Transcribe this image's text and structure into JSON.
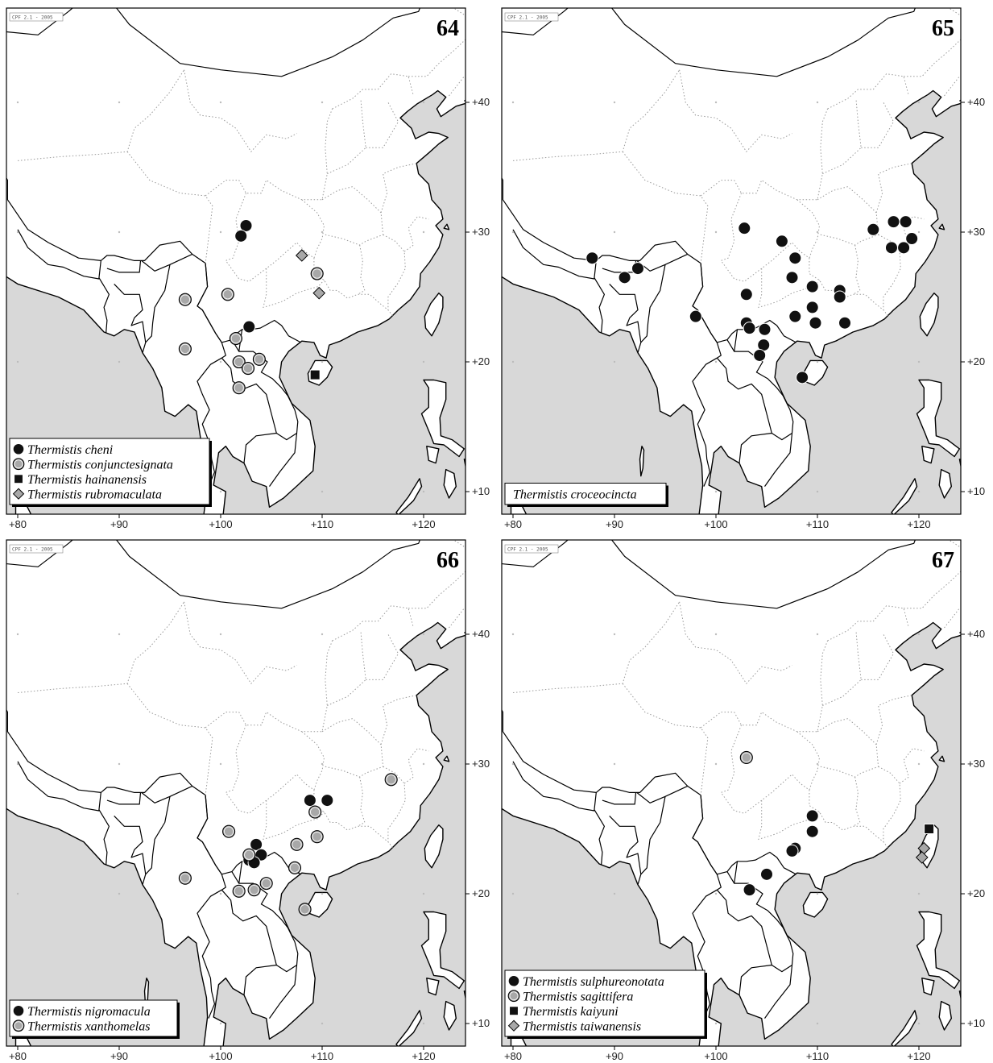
{
  "maps": [
    {
      "number": "64",
      "stamp": "CPF 2.1 - 2005",
      "legend": [
        {
          "symbol": "black-circle",
          "label": "Thermistis cheni"
        },
        {
          "symbol": "gray-circle",
          "label": "Thermistis conjunctesignata"
        },
        {
          "symbol": "black-square",
          "label": "Thermistis hainanensis"
        },
        {
          "symbol": "gray-diamond",
          "label": "Thermistis rubromaculata"
        }
      ],
      "points": [
        {
          "symbol": "black-circle",
          "lon": 102.5,
          "lat": 30.5
        },
        {
          "symbol": "black-circle",
          "lon": 102.0,
          "lat": 29.7
        },
        {
          "symbol": "black-circle",
          "lon": 102.8,
          "lat": 22.7
        },
        {
          "symbol": "gray-circle",
          "lon": 96.5,
          "lat": 24.8
        },
        {
          "symbol": "gray-circle",
          "lon": 96.5,
          "lat": 21.0
        },
        {
          "symbol": "gray-circle",
          "lon": 100.7,
          "lat": 25.2
        },
        {
          "symbol": "gray-circle",
          "lon": 101.5,
          "lat": 21.8
        },
        {
          "symbol": "gray-circle",
          "lon": 101.8,
          "lat": 20.0
        },
        {
          "symbol": "gray-circle",
          "lon": 102.7,
          "lat": 19.5
        },
        {
          "symbol": "gray-circle",
          "lon": 103.8,
          "lat": 20.2
        },
        {
          "symbol": "gray-circle",
          "lon": 101.8,
          "lat": 18.0
        },
        {
          "symbol": "gray-circle",
          "lon": 109.5,
          "lat": 26.8
        },
        {
          "symbol": "black-square",
          "lon": 109.3,
          "lat": 19.0
        },
        {
          "symbol": "gray-diamond",
          "lon": 108.0,
          "lat": 28.2
        },
        {
          "symbol": "gray-diamond",
          "lon": 109.7,
          "lat": 25.3
        }
      ]
    },
    {
      "number": "65",
      "stamp": "CPF 2.1 - 2005",
      "legend": [
        {
          "symbol": "none",
          "label": "Thermistis croceocincta"
        }
      ],
      "points": [
        {
          "symbol": "black-circle",
          "lon": 87.8,
          "lat": 28.0
        },
        {
          "symbol": "black-circle",
          "lon": 91.0,
          "lat": 26.5
        },
        {
          "symbol": "black-circle",
          "lon": 92.3,
          "lat": 27.2
        },
        {
          "symbol": "black-circle",
          "lon": 98.0,
          "lat": 23.5
        },
        {
          "symbol": "black-circle",
          "lon": 102.8,
          "lat": 30.3
        },
        {
          "symbol": "black-circle",
          "lon": 106.5,
          "lat": 29.3
        },
        {
          "symbol": "black-circle",
          "lon": 107.8,
          "lat": 28.0
        },
        {
          "symbol": "black-circle",
          "lon": 103.0,
          "lat": 25.2
        },
        {
          "symbol": "black-circle",
          "lon": 107.5,
          "lat": 26.5
        },
        {
          "symbol": "black-circle",
          "lon": 109.5,
          "lat": 25.8
        },
        {
          "symbol": "black-circle",
          "lon": 109.5,
          "lat": 24.2
        },
        {
          "symbol": "black-circle",
          "lon": 107.8,
          "lat": 23.5
        },
        {
          "symbol": "black-circle",
          "lon": 109.8,
          "lat": 23.0
        },
        {
          "symbol": "black-circle",
          "lon": 112.2,
          "lat": 25.5
        },
        {
          "symbol": "black-circle",
          "lon": 112.2,
          "lat": 25.0
        },
        {
          "symbol": "black-circle",
          "lon": 112.7,
          "lat": 23.0
        },
        {
          "symbol": "black-circle",
          "lon": 103.0,
          "lat": 23.0
        },
        {
          "symbol": "black-circle",
          "lon": 103.3,
          "lat": 22.6
        },
        {
          "symbol": "black-circle",
          "lon": 104.8,
          "lat": 22.5
        },
        {
          "symbol": "black-circle",
          "lon": 104.7,
          "lat": 21.3
        },
        {
          "symbol": "black-circle",
          "lon": 104.3,
          "lat": 20.5
        },
        {
          "symbol": "black-circle",
          "lon": 108.5,
          "lat": 18.8
        },
        {
          "symbol": "black-circle",
          "lon": 115.5,
          "lat": 30.2
        },
        {
          "symbol": "black-circle",
          "lon": 117.5,
          "lat": 30.8
        },
        {
          "symbol": "black-circle",
          "lon": 118.7,
          "lat": 30.8
        },
        {
          "symbol": "black-circle",
          "lon": 117.3,
          "lat": 28.8
        },
        {
          "symbol": "black-circle",
          "lon": 118.5,
          "lat": 28.8
        },
        {
          "symbol": "black-circle",
          "lon": 119.3,
          "lat": 29.5
        }
      ]
    },
    {
      "number": "66",
      "stamp": "CPF 2.1 - 2005",
      "legend": [
        {
          "symbol": "black-circle",
          "label": "Thermistis nigromacula"
        },
        {
          "symbol": "gray-circle",
          "label": "Thermistis xanthomelas"
        }
      ],
      "points": [
        {
          "symbol": "black-circle",
          "lon": 108.8,
          "lat": 27.2
        },
        {
          "symbol": "black-circle",
          "lon": 110.5,
          "lat": 27.2
        },
        {
          "symbol": "black-circle",
          "lon": 103.5,
          "lat": 23.8
        },
        {
          "symbol": "black-circle",
          "lon": 104.0,
          "lat": 23.0
        },
        {
          "symbol": "black-circle",
          "lon": 102.8,
          "lat": 22.6
        },
        {
          "symbol": "black-circle",
          "lon": 103.3,
          "lat": 22.4
        },
        {
          "symbol": "gray-circle",
          "lon": 109.3,
          "lat": 26.3
        },
        {
          "symbol": "gray-circle",
          "lon": 109.5,
          "lat": 24.4
        },
        {
          "symbol": "gray-circle",
          "lon": 107.5,
          "lat": 23.8
        },
        {
          "symbol": "gray-circle",
          "lon": 107.3,
          "lat": 22.0
        },
        {
          "symbol": "gray-circle",
          "lon": 116.8,
          "lat": 28.8
        },
        {
          "symbol": "gray-circle",
          "lon": 100.8,
          "lat": 24.8
        },
        {
          "symbol": "gray-circle",
          "lon": 102.8,
          "lat": 23.0
        },
        {
          "symbol": "gray-circle",
          "lon": 96.5,
          "lat": 21.2
        },
        {
          "symbol": "gray-circle",
          "lon": 101.8,
          "lat": 20.2
        },
        {
          "symbol": "gray-circle",
          "lon": 103.3,
          "lat": 20.3
        },
        {
          "symbol": "gray-circle",
          "lon": 104.5,
          "lat": 20.8
        },
        {
          "symbol": "gray-circle",
          "lon": 108.3,
          "lat": 18.8
        }
      ]
    },
    {
      "number": "67",
      "stamp": "CPF 2.1 - 2005",
      "legend": [
        {
          "symbol": "black-circle",
          "label": "Thermistis sulphureonotata"
        },
        {
          "symbol": "gray-circle",
          "label": "Thermistis sagittifera"
        },
        {
          "symbol": "black-square",
          "label": "Thermistis kaiyuni"
        },
        {
          "symbol": "gray-diamond",
          "label": "Thermistis taiwanensis"
        }
      ],
      "points": [
        {
          "symbol": "gray-circle",
          "lon": 103.0,
          "lat": 30.5
        },
        {
          "symbol": "black-circle",
          "lon": 109.5,
          "lat": 26.0
        },
        {
          "symbol": "black-circle",
          "lon": 109.5,
          "lat": 24.8
        },
        {
          "symbol": "black-circle",
          "lon": 107.8,
          "lat": 23.5
        },
        {
          "symbol": "black-circle",
          "lon": 107.5,
          "lat": 23.3
        },
        {
          "symbol": "black-circle",
          "lon": 105.0,
          "lat": 21.5
        },
        {
          "symbol": "black-circle",
          "lon": 103.3,
          "lat": 20.3
        },
        {
          "symbol": "black-square",
          "lon": 121.0,
          "lat": 25.0
        },
        {
          "symbol": "gray-diamond",
          "lon": 120.5,
          "lat": 23.5
        },
        {
          "symbol": "gray-diamond",
          "lon": 120.3,
          "lat": 22.8
        }
      ]
    }
  ],
  "axes": {
    "x_ticks": [
      "+80",
      "+90",
      "+100",
      "+110",
      "+120"
    ],
    "y_ticks": [
      "+40",
      "+30",
      "+20",
      "+10"
    ]
  }
}
